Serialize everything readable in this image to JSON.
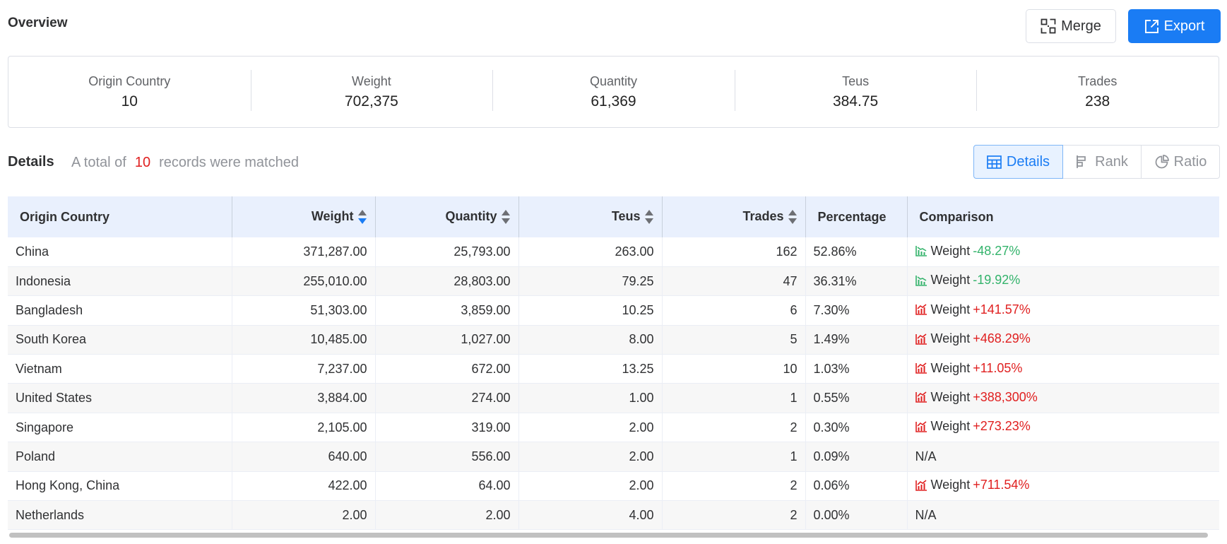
{
  "header": {
    "title": "Overview",
    "merge_label": "Merge",
    "export_label": "Export"
  },
  "summary": [
    {
      "label": "Origin Country",
      "value": "10"
    },
    {
      "label": "Weight",
      "value": "702,375"
    },
    {
      "label": "Quantity",
      "value": "61,369"
    },
    {
      "label": "Teus",
      "value": "384.75"
    },
    {
      "label": "Trades",
      "value": "238"
    }
  ],
  "details": {
    "title": "Details",
    "total_prefix": "A total of",
    "total_count": "10",
    "total_suffix": "records were matched",
    "view_tabs": [
      {
        "label": "Details",
        "icon": "table-icon",
        "active": true
      },
      {
        "label": "Rank",
        "icon": "rank-bars-icon",
        "active": false
      },
      {
        "label": "Ratio",
        "icon": "pie-icon",
        "active": false
      }
    ]
  },
  "table": {
    "columns": [
      "Origin Country",
      "Weight",
      "Quantity",
      "Teus",
      "Trades",
      "Percentage",
      "Comparison"
    ],
    "rows": [
      {
        "country": "China",
        "weight": "371,287.00",
        "quantity": "25,793.00",
        "teus": "263.00",
        "trades": "162",
        "percentage": "52.86%",
        "cmp_label": "Weight",
        "cmp_value": "-48.27%",
        "cmp_dir": "down"
      },
      {
        "country": "Indonesia",
        "weight": "255,010.00",
        "quantity": "28,803.00",
        "teus": "79.25",
        "trades": "47",
        "percentage": "36.31%",
        "cmp_label": "Weight",
        "cmp_value": "-19.92%",
        "cmp_dir": "down"
      },
      {
        "country": "Bangladesh",
        "weight": "51,303.00",
        "quantity": "3,859.00",
        "teus": "10.25",
        "trades": "6",
        "percentage": "7.30%",
        "cmp_label": "Weight",
        "cmp_value": "+141.57%",
        "cmp_dir": "up"
      },
      {
        "country": "South Korea",
        "weight": "10,485.00",
        "quantity": "1,027.00",
        "teus": "8.00",
        "trades": "5",
        "percentage": "1.49%",
        "cmp_label": "Weight",
        "cmp_value": "+468.29%",
        "cmp_dir": "up"
      },
      {
        "country": "Vietnam",
        "weight": "7,237.00",
        "quantity": "672.00",
        "teus": "13.25",
        "trades": "10",
        "percentage": "1.03%",
        "cmp_label": "Weight",
        "cmp_value": "+11.05%",
        "cmp_dir": "up"
      },
      {
        "country": "United States",
        "weight": "3,884.00",
        "quantity": "274.00",
        "teus": "1.00",
        "trades": "1",
        "percentage": "0.55%",
        "cmp_label": "Weight",
        "cmp_value": "+388,300%",
        "cmp_dir": "up"
      },
      {
        "country": "Singapore",
        "weight": "2,105.00",
        "quantity": "319.00",
        "teus": "2.00",
        "trades": "2",
        "percentage": "0.30%",
        "cmp_label": "Weight",
        "cmp_value": "+273.23%",
        "cmp_dir": "up"
      },
      {
        "country": "Poland",
        "weight": "640.00",
        "quantity": "556.00",
        "teus": "2.00",
        "trades": "1",
        "percentage": "0.09%",
        "cmp_na": "N/A"
      },
      {
        "country": "Hong Kong, China",
        "weight": "422.00",
        "quantity": "64.00",
        "teus": "2.00",
        "trades": "2",
        "percentage": "0.06%",
        "cmp_label": "Weight",
        "cmp_value": "+711.54%",
        "cmp_dir": "up"
      },
      {
        "country": "Netherlands",
        "weight": "2.00",
        "quantity": "2.00",
        "teus": "4.00",
        "trades": "2",
        "percentage": "0.00%",
        "cmp_na": "N/A"
      }
    ]
  },
  "colors": {
    "accent": "#1a7cf4",
    "header_bg": "#e9f0fd",
    "positive_change": "#e02020",
    "negative_change": "#33b36b"
  }
}
